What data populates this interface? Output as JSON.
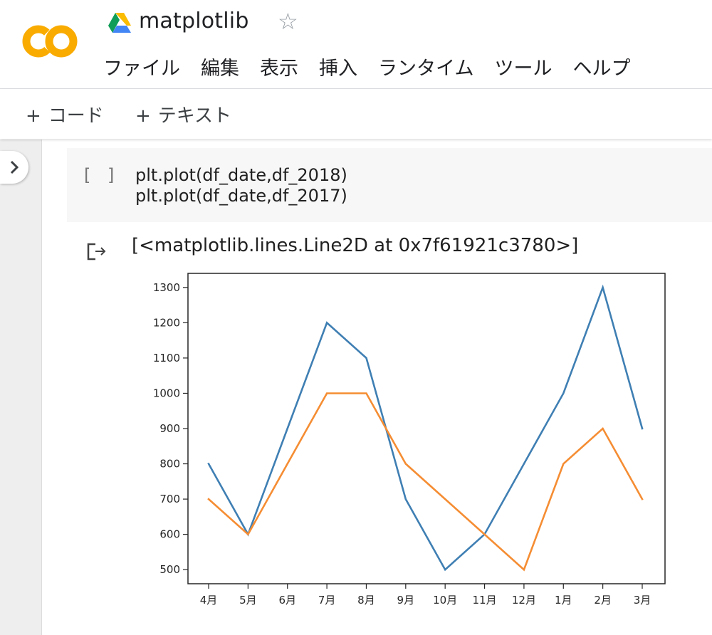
{
  "header": {
    "title": "matplotlib",
    "menu": [
      "ファイル",
      "編集",
      "表示",
      "挿入",
      "ランタイム",
      "ツール",
      "ヘルプ"
    ]
  },
  "toolbar": {
    "add_code": "コード",
    "add_text": "テキスト"
  },
  "cell": {
    "execution_count": "[ ]",
    "code_line_1": "plt.plot(df_date,df_2018)",
    "code_line_2": "plt.plot(df_date,df_2017)"
  },
  "output": {
    "text": "[<matplotlib.lines.Line2D at 0x7f61921c3780>]"
  },
  "colors": {
    "series_1": "#3f7fb3",
    "series_2": "#f58d33",
    "logo": "#f9ab00"
  },
  "chart_data": {
    "type": "line",
    "categories": [
      "4月",
      "5月",
      "6月",
      "7月",
      "8月",
      "9月",
      "10月",
      "11月",
      "12月",
      "1月",
      "2月",
      "3月"
    ],
    "series": [
      {
        "values": [
          800,
          600,
          900,
          1200,
          1100,
          700,
          500,
          600,
          800,
          1000,
          1300,
          900
        ],
        "color": "#3f7fb3"
      },
      {
        "values": [
          700,
          600,
          800,
          1000,
          1000,
          800,
          700,
          600,
          500,
          800,
          900,
          700
        ],
        "color": "#f58d33"
      }
    ],
    "yticks": [
      500,
      600,
      700,
      800,
      900,
      1000,
      1100,
      1200,
      1300
    ],
    "ylim": [
      460,
      1340
    ],
    "grid": false
  }
}
